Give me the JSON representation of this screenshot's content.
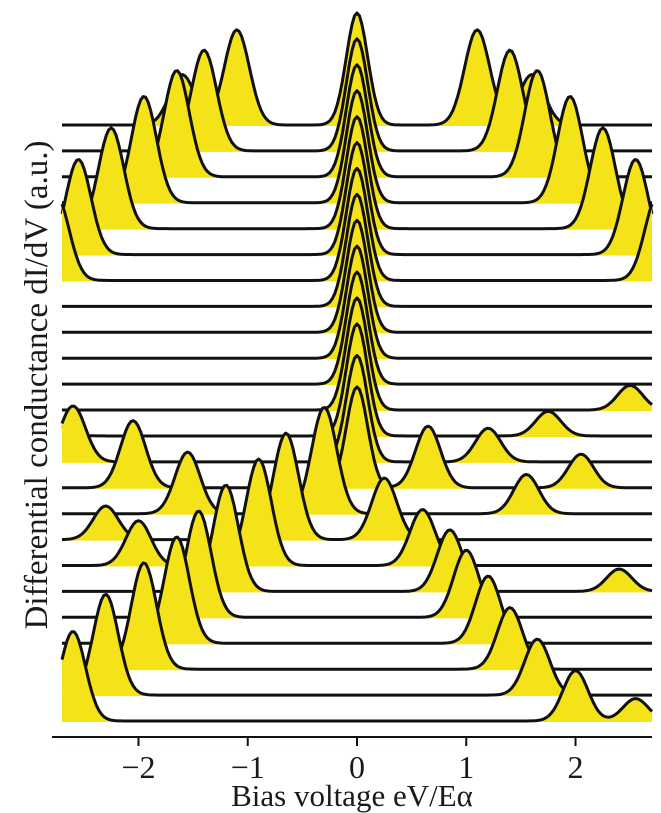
{
  "chart_data": {
    "type": "waterfall line",
    "xlabel": "Bias voltage  eV/Eα",
    "ylabel": "Differential conductance  dI/dV  (a.u.)",
    "x_ticks": [
      -2,
      -1,
      0,
      1,
      2
    ],
    "xlim": [
      -2.7,
      2.7
    ],
    "fill_color": "#f5e31a",
    "line_color": "#111111",
    "curve_count": 24,
    "series": [
      {
        "peaks": [
          {
            "x": 0,
            "h": 1.0
          },
          {
            "x": -1.1,
            "h": 0.85
          },
          {
            "x": 1.1,
            "h": 0.85
          },
          {
            "x": -1.6,
            "h": 0.45
          },
          {
            "x": 1.6,
            "h": 0.45
          }
        ]
      },
      {
        "peaks": [
          {
            "x": 0,
            "h": 1.0
          },
          {
            "x": -1.4,
            "h": 0.9
          },
          {
            "x": 1.4,
            "h": 0.9
          }
        ]
      },
      {
        "peaks": [
          {
            "x": 0,
            "h": 1.0
          },
          {
            "x": -1.65,
            "h": 0.95
          },
          {
            "x": 1.65,
            "h": 0.95
          }
        ]
      },
      {
        "peaks": [
          {
            "x": 0,
            "h": 1.0
          },
          {
            "x": -1.95,
            "h": 0.95
          },
          {
            "x": 1.95,
            "h": 0.95
          }
        ]
      },
      {
        "peaks": [
          {
            "x": 0,
            "h": 1.0
          },
          {
            "x": -2.25,
            "h": 0.9
          },
          {
            "x": 2.25,
            "h": 0.9
          }
        ]
      },
      {
        "peaks": [
          {
            "x": 0,
            "h": 1.0
          },
          {
            "x": -2.55,
            "h": 0.85
          },
          {
            "x": 2.55,
            "h": 0.85
          }
        ]
      },
      {
        "peaks": [
          {
            "x": 0,
            "h": 1.0
          },
          {
            "x": -2.75,
            "h": 0.75
          },
          {
            "x": 2.75,
            "h": 0.75
          }
        ]
      },
      {
        "peaks": [
          {
            "x": 0,
            "h": 1.0
          }
        ]
      },
      {
        "peaks": [
          {
            "x": 0,
            "h": 1.0
          }
        ]
      },
      {
        "peaks": [
          {
            "x": 0,
            "h": 1.0
          }
        ]
      },
      {
        "peaks": [
          {
            "x": 0,
            "h": 1.0
          }
        ]
      },
      {
        "peaks": [
          {
            "x": 0,
            "h": 1.0
          },
          {
            "x": 2.5,
            "h": 0.22
          }
        ]
      },
      {
        "peaks": [
          {
            "x": 0,
            "h": 1.0
          },
          {
            "x": 1.75,
            "h": 0.22
          },
          {
            "x": -2.75,
            "h": 0.1
          }
        ]
      },
      {
        "peaks": [
          {
            "x": 0,
            "h": 0.95
          },
          {
            "x": -2.6,
            "h": 0.5
          },
          {
            "x": 1.2,
            "h": 0.3
          }
        ]
      },
      {
        "peaks": [
          {
            "x": 0,
            "h": 0.9
          },
          {
            "x": -2.05,
            "h": 0.6
          },
          {
            "x": 0.65,
            "h": 0.55
          },
          {
            "x": 2.05,
            "h": 0.3
          }
        ]
      },
      {
        "peaks": [
          {
            "x": -0.3,
            "h": 0.95
          },
          {
            "x": -1.55,
            "h": 0.55
          },
          {
            "x": 1.55,
            "h": 0.35
          }
        ]
      },
      {
        "peaks": [
          {
            "x": -0.65,
            "h": 0.95
          },
          {
            "x": 0.25,
            "h": 0.55
          },
          {
            "x": -2.3,
            "h": 0.3
          }
        ]
      },
      {
        "peaks": [
          {
            "x": -0.9,
            "h": 0.95
          },
          {
            "x": -2.0,
            "h": 0.4
          },
          {
            "x": 0.6,
            "h": 0.5
          }
        ]
      },
      {
        "peaks": [
          {
            "x": -1.2,
            "h": 0.95
          },
          {
            "x": 0.85,
            "h": 0.55
          },
          {
            "x": 2.4,
            "h": 0.2
          }
        ]
      },
      {
        "peaks": [
          {
            "x": -1.45,
            "h": 0.95
          },
          {
            "x": 1.0,
            "h": 0.6
          }
        ]
      },
      {
        "peaks": [
          {
            "x": -1.65,
            "h": 0.95
          },
          {
            "x": 1.2,
            "h": 0.6
          }
        ]
      },
      {
        "peaks": [
          {
            "x": -1.95,
            "h": 0.95
          },
          {
            "x": 1.4,
            "h": 0.55
          }
        ]
      },
      {
        "peaks": [
          {
            "x": -2.3,
            "h": 0.9
          },
          {
            "x": 1.65,
            "h": 0.5
          }
        ]
      },
      {
        "peaks": [
          {
            "x": -2.6,
            "h": 0.8
          },
          {
            "x": 2.0,
            "h": 0.45
          },
          {
            "x": 2.55,
            "h": 0.2
          }
        ]
      }
    ]
  }
}
